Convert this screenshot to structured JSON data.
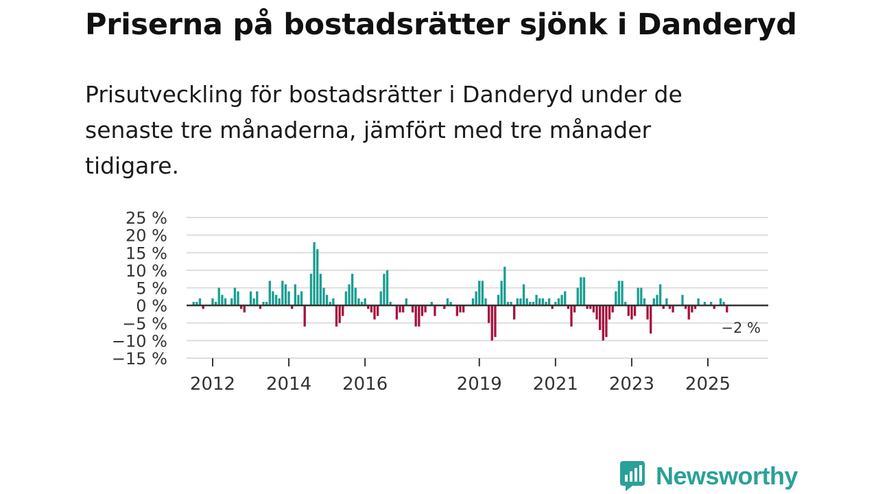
{
  "title": "Priserna på bostadsrätter sjönk i Danderyd",
  "subtitle": "Prisutveckling för bostadsrätter i Danderyd under de senaste tre månaderna, jämfört med tre månader tidigare.",
  "brand": {
    "name": "Newsworthy"
  },
  "colors": {
    "positive": "#1a9e93",
    "negative": "#a6123d",
    "grid": "#dddddd",
    "axis": "#333333",
    "brand": "#2aa198"
  },
  "chart_data": {
    "type": "bar",
    "ylim": [
      -15,
      25
    ],
    "y_ticks": [
      25,
      20,
      15,
      10,
      5,
      0,
      -5,
      -10,
      -15
    ],
    "y_tick_labels": [
      "25 %",
      "20 %",
      "15 %",
      "10 %",
      "5 %",
      "0 %",
      "−5 %",
      "−10 %",
      "−15 %"
    ],
    "x_ticks": [
      "2012",
      "2014",
      "2016",
      "2019",
      "2021",
      "2023",
      "2025"
    ],
    "last_value_label": "−2 %",
    "start": "2011-07",
    "values": [
      1,
      1,
      2,
      -1,
      0,
      0,
      2,
      1,
      5,
      3,
      2,
      0,
      2,
      5,
      4,
      -1,
      -2,
      0,
      4,
      2,
      4,
      -1,
      1,
      1,
      7,
      4,
      3,
      2,
      7,
      6,
      4,
      -1,
      6,
      3,
      4,
      -6,
      0,
      9,
      18,
      16,
      9,
      5,
      3,
      1,
      2,
      -6,
      -5,
      -3,
      4,
      6,
      9,
      5,
      2,
      1,
      2,
      -1,
      -2,
      -4,
      -3,
      4,
      9,
      10,
      1,
      0,
      -4,
      -2,
      -2,
      2,
      0,
      -2,
      -6,
      -6,
      -3,
      -2,
      0,
      1,
      -3,
      0,
      0,
      -1,
      2,
      1,
      0,
      -3,
      -2,
      -2,
      0,
      0,
      2,
      4,
      7,
      7,
      2,
      -5,
      -10,
      -9,
      3,
      7,
      11,
      1,
      1,
      -4,
      2,
      2,
      6,
      2,
      1,
      1,
      3,
      2,
      2,
      1,
      2,
      -1,
      1,
      2,
      3,
      4,
      -1,
      -6,
      -2,
      5,
      8,
      8,
      -1,
      -1,
      -2,
      -4,
      -7,
      -10,
      -9,
      -4,
      -2,
      4,
      7,
      7,
      1,
      -3,
      -4,
      -3,
      5,
      5,
      2,
      -4,
      -8,
      2,
      3,
      6,
      -1,
      2,
      -1,
      -2,
      0,
      0,
      3,
      -1,
      -4,
      -2,
      -1,
      2,
      0,
      1,
      0,
      1,
      -1,
      0,
      2,
      1,
      -2
    ]
  }
}
